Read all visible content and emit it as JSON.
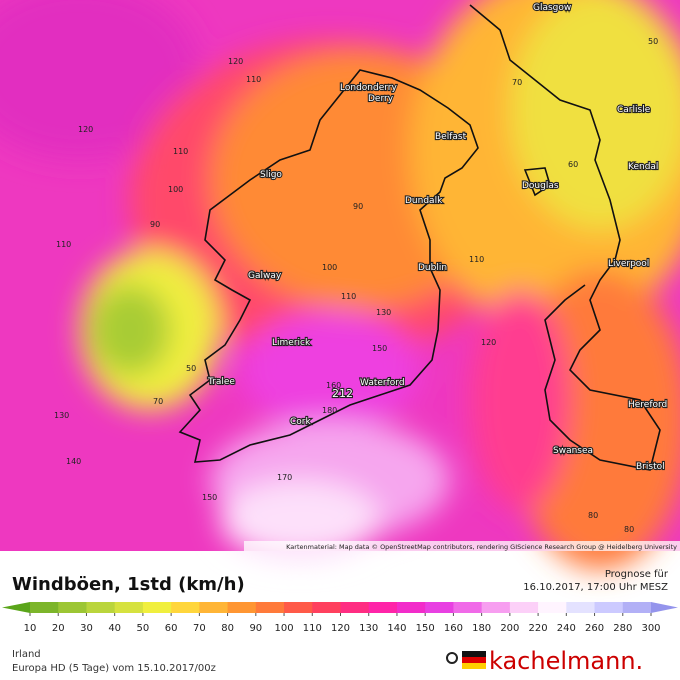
{
  "map": {
    "cities": [
      "Glasgow",
      "Londonderry",
      "Derry",
      "Belfast",
      "Sligo",
      "Dundalk",
      "Douglas",
      "Carlisle",
      "Kendal",
      "Galway",
      "Dublin",
      "Liverpool",
      "Limerick",
      "Tralee",
      "Waterford",
      "Cork",
      "Swansea",
      "Hereford",
      "Bristol"
    ],
    "wind_labels": [
      120,
      110,
      120,
      110,
      100,
      90,
      110,
      50,
      70,
      130,
      140,
      150,
      170,
      212,
      180,
      160,
      130,
      150,
      100,
      110,
      120,
      110,
      90,
      60,
      70,
      50,
      80,
      80
    ],
    "attribution": "Kartenmaterial: Map data © OpenStreetMap contributors, rendering GIScience Research Group @ Heidelberg University"
  },
  "header": {
    "title": "Windböen, 1std (km/h)",
    "forecast_label": "Prognose für",
    "forecast_time": "16.10.2017, 17:00 Uhr MESZ"
  },
  "legend": {
    "ticks": [
      10,
      20,
      30,
      40,
      50,
      60,
      70,
      80,
      90,
      100,
      110,
      120,
      130,
      140,
      150,
      160,
      180,
      200,
      220,
      240,
      260,
      280,
      300
    ],
    "colors": [
      "#5aa51a",
      "#7cb52a",
      "#9cc634",
      "#bad53c",
      "#d6e23f",
      "#f0ef3e",
      "#ffd63c",
      "#ffb536",
      "#ff9632",
      "#ff7a3a",
      "#ff5a48",
      "#ff405e",
      "#ff2d82",
      "#ff24a8",
      "#f22cca",
      "#e840e2",
      "#f06ae8",
      "#f79ef0",
      "#fcd0f8",
      "#fff4ff",
      "#e4e2ff",
      "#cccaff",
      "#b2b0f6",
      "#9494ec"
    ]
  },
  "footer": {
    "region": "Irland",
    "model": "Europa HD (5 Tage) vom 15.10.2017/00z",
    "brand": "kachelmann."
  }
}
